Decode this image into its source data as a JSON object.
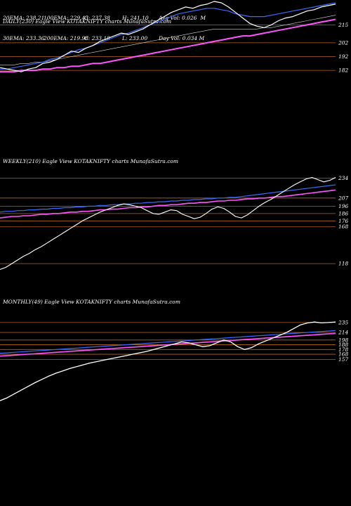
{
  "header": {
    "row1": [
      "20EMA: 238.21",
      "100EMA: 229.43",
      "C: 237.38",
      "H: 241.10",
      "Avg Vol: 0.026  M"
    ],
    "row2": [
      "30EMA: 233.36",
      "200EMA: 219.98",
      "C: 233.18",
      "L: 233.00",
      "Day Vol: 0.034 M"
    ]
  },
  "colors": {
    "background": "#000000",
    "price": "#ffffff",
    "ema_fast": "#3a6bff",
    "ema_slow": "#ff55ff",
    "grid": "#b8641e",
    "ema_dim": "#d8d8d8"
  },
  "chart_data": [
    {
      "type": "line",
      "title": "DAILY(230) Eagle  View  KOTAKNIFTY charts MunafaSutra.com",
      "ylim": [
        178,
        232
      ],
      "yticks": [
        182,
        192,
        202,
        215
      ],
      "series": [
        {
          "values": [
            184,
            183,
            182,
            181,
            183,
            184,
            187,
            188,
            190,
            193,
            196,
            195,
            198,
            200,
            203,
            205,
            207,
            209,
            208,
            210,
            212,
            215,
            218,
            221,
            224,
            226,
            228,
            227,
            229,
            230,
            232,
            231,
            228,
            224,
            220,
            216,
            214,
            213,
            215,
            218,
            220,
            221,
            223,
            225,
            226,
            228,
            229,
            230
          ]
        },
        {
          "values": [
            183,
            183,
            184,
            185,
            186,
            187,
            188,
            190,
            191,
            193,
            195,
            197,
            198,
            200,
            202,
            204,
            206,
            208,
            209,
            211,
            213,
            215,
            217,
            219,
            221,
            223,
            224,
            225,
            226,
            227,
            227,
            226,
            225,
            223,
            222,
            221,
            221,
            221,
            222,
            223,
            224,
            225,
            226,
            227,
            228,
            229,
            230,
            231
          ]
        },
        {
          "values": [
            186,
            186,
            186,
            187,
            187,
            188,
            188,
            189,
            190,
            191,
            192,
            193,
            194,
            195,
            196,
            197,
            198,
            199,
            200,
            201,
            202,
            203,
            204,
            205,
            206,
            207,
            208,
            209,
            210,
            211,
            212,
            212,
            212,
            212,
            212,
            212,
            212,
            213,
            213,
            214,
            215,
            216,
            217,
            218,
            219,
            220,
            221,
            222
          ]
        },
        {
          "values": [
            181,
            181,
            181,
            182,
            182,
            182,
            183,
            183,
            184,
            184,
            185,
            185,
            186,
            187,
            187,
            188,
            189,
            190,
            191,
            192,
            193,
            194,
            195,
            196,
            197,
            198,
            199,
            200,
            201,
            202,
            203,
            204,
            205,
            206,
            207,
            207,
            208,
            209,
            210,
            211,
            212,
            213,
            214,
            215,
            216,
            217,
            218,
            219
          ]
        }
      ]
    },
    {
      "type": "line",
      "title": "WEEKLY(210) Eagle  View  KOTAKNIFTY charts MunafaSutra.com",
      "ylim": [
        100,
        245
      ],
      "yticks": [
        118,
        168,
        176,
        186,
        196,
        207,
        234
      ],
      "series": [
        {
          "values": [
            110,
            113,
            118,
            123,
            128,
            132,
            137,
            141,
            146,
            151,
            156,
            161,
            166,
            171,
            176,
            180,
            184,
            188,
            191,
            194,
            197,
            199,
            198,
            196,
            194,
            190,
            186,
            185,
            188,
            191,
            190,
            185,
            182,
            179,
            181,
            186,
            192,
            195,
            193,
            188,
            182,
            180,
            184,
            190,
            196,
            201,
            205,
            210,
            215,
            220,
            225,
            229,
            233,
            235,
            232,
            229,
            231,
            235
          ]
        },
        {
          "values": [
            188,
            189,
            189,
            190,
            190,
            191,
            191,
            192,
            192,
            193,
            193,
            194,
            194,
            195,
            195,
            196,
            196,
            197,
            197,
            198,
            198,
            199,
            199,
            200,
            200,
            201,
            201,
            202,
            202,
            203,
            203,
            204,
            204,
            205,
            205,
            206,
            206,
            207,
            207,
            208,
            208,
            209,
            210,
            211,
            212,
            213,
            214,
            215,
            216,
            217,
            218,
            219,
            220,
            221,
            222,
            223,
            224,
            225
          ]
        },
        {
          "values": [
            180,
            181,
            182,
            182,
            183,
            183,
            184,
            185,
            185,
            186,
            186,
            187,
            188,
            188,
            189,
            189,
            190,
            191,
            191,
            192,
            192,
            193,
            194,
            194,
            195,
            195,
            196,
            197,
            197,
            198,
            198,
            199,
            200,
            200,
            201,
            201,
            202,
            203,
            203,
            204,
            204,
            205,
            206,
            206,
            207,
            207,
            208,
            209,
            209,
            210,
            211,
            212,
            213,
            214,
            215,
            216,
            217,
            218
          ]
        }
      ]
    },
    {
      "type": "line",
      "title": "MONTHLY(49) Eagle  View  KOTAKNIFTY charts MunafaSutra.com",
      "ylim": [
        45,
        260
      ],
      "yticks": [
        157,
        168,
        178,
        188,
        198,
        214,
        235
      ],
      "series": [
        {
          "values": [
            70,
            76,
            84,
            92,
            100,
            108,
            115,
            122,
            128,
            133,
            138,
            142,
            146,
            150,
            153,
            156,
            159,
            162,
            165,
            168,
            171,
            174,
            178,
            182,
            186,
            190,
            194,
            192,
            188,
            184,
            186,
            192,
            198,
            194,
            184,
            178,
            182,
            190,
            196,
            202,
            208,
            214,
            222,
            230,
            234,
            236,
            234,
            235,
            236
          ]
        },
        {
          "values": [
            170,
            171,
            172,
            173,
            174,
            175,
            176,
            177,
            178,
            179,
            180,
            181,
            182,
            183,
            184,
            185,
            186,
            187,
            188,
            189,
            190,
            191,
            192,
            193,
            194,
            195,
            196,
            197,
            198,
            199,
            200,
            201,
            202,
            203,
            204,
            205,
            206,
            207,
            208,
            209,
            210,
            211,
            212,
            213,
            214,
            215,
            216,
            217,
            218
          ]
        },
        {
          "values": [
            164,
            165,
            166,
            167,
            168,
            169,
            170,
            171,
            172,
            173,
            174,
            175,
            176,
            177,
            178,
            179,
            180,
            181,
            182,
            183,
            184,
            185,
            186,
            187,
            188,
            189,
            190,
            191,
            192,
            193,
            194,
            195,
            196,
            197,
            198,
            199,
            200,
            201,
            202,
            203,
            204,
            205,
            206,
            207,
            208,
            209,
            210,
            211,
            212
          ]
        }
      ]
    }
  ]
}
